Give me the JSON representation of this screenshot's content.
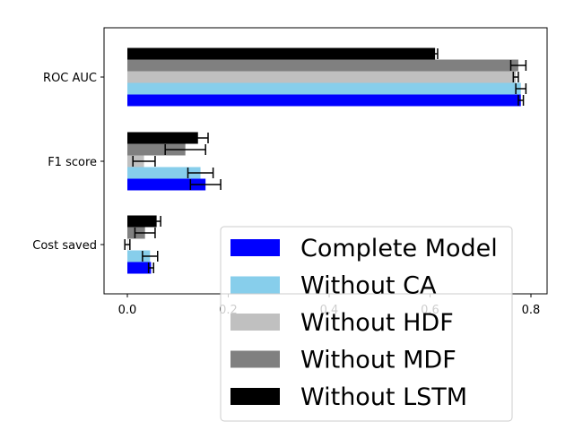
{
  "chart_data": {
    "type": "bar",
    "orientation": "horizontal",
    "categories": [
      "ROC AUC",
      "F1 score",
      "Cost saved"
    ],
    "x_ticks": [
      0.0,
      0.2,
      0.4,
      0.6,
      0.8
    ],
    "x_tick_labels": [
      "0.0",
      "0.2",
      "0.4",
      "0.6",
      "0.8"
    ],
    "xlim": [
      -0.046,
      0.83
    ],
    "grid": false,
    "legend_position": "lower-right",
    "series": [
      {
        "name": "Complete Model",
        "color": "#0000ff",
        "values": [
          0.78,
          0.155,
          0.047
        ],
        "errors": [
          0.005,
          0.03,
          0.005
        ]
      },
      {
        "name": "Without CA",
        "color": "#87ceeb",
        "values": [
          0.78,
          0.145,
          0.045
        ],
        "errors": [
          0.01,
          0.025,
          0.015
        ]
      },
      {
        "name": "Without HDF",
        "color": "#c0c0c0",
        "values": [
          0.77,
          0.033,
          0.0
        ],
        "errors": [
          0.005,
          0.022,
          0.005
        ]
      },
      {
        "name": "Without MDF",
        "color": "#808080",
        "values": [
          0.775,
          0.115,
          0.035
        ],
        "errors": [
          0.015,
          0.04,
          0.02
        ]
      },
      {
        "name": "Without LSTM",
        "color": "#000000",
        "values": [
          0.61,
          0.14,
          0.058
        ],
        "errors": [
          0.005,
          0.02,
          0.008
        ]
      }
    ]
  }
}
